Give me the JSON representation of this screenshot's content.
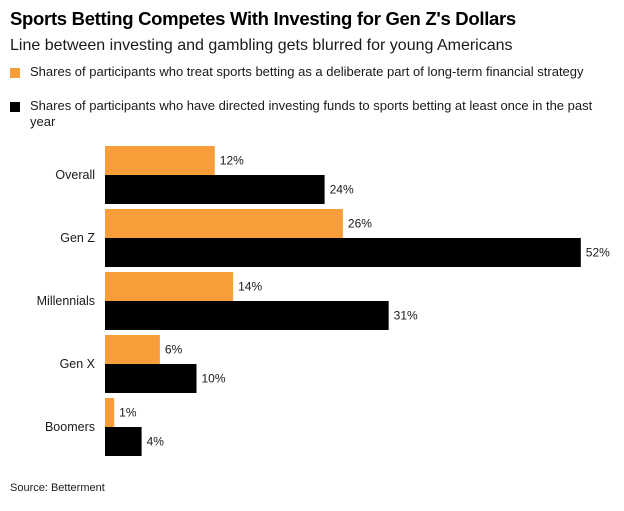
{
  "title": "Sports Betting Competes With Investing for Gen Z's Dollars",
  "subtitle": "Line between investing and gambling gets blurred for young Americans",
  "legend": [
    {
      "label": "Shares of participants who treat sports betting as a deliberate part of long-term financial strategy",
      "color": "#f79e3b"
    },
    {
      "label": "Shares of participants who have directed investing funds to sports betting at least once in the past year",
      "color": "#000000"
    }
  ],
  "source": "Source: Betterment",
  "chart_data": {
    "type": "bar",
    "orientation": "horizontal",
    "categories": [
      "Overall",
      "Gen Z",
      "Millennials",
      "Gen X",
      "Boomers"
    ],
    "series": [
      {
        "name": "Shares of participants who treat sports betting as a deliberate part of long-term financial strategy",
        "values": [
          12,
          26,
          14,
          6,
          1
        ],
        "color": "#f79e3b"
      },
      {
        "name": "Shares of participants who have directed investing funds to sports betting at least once in the past year",
        "values": [
          24,
          52,
          31,
          10,
          4
        ],
        "color": "#000000"
      }
    ],
    "value_suffix": "%",
    "xlim": [
      0,
      52
    ],
    "grid": false,
    "legend_position": "top"
  }
}
